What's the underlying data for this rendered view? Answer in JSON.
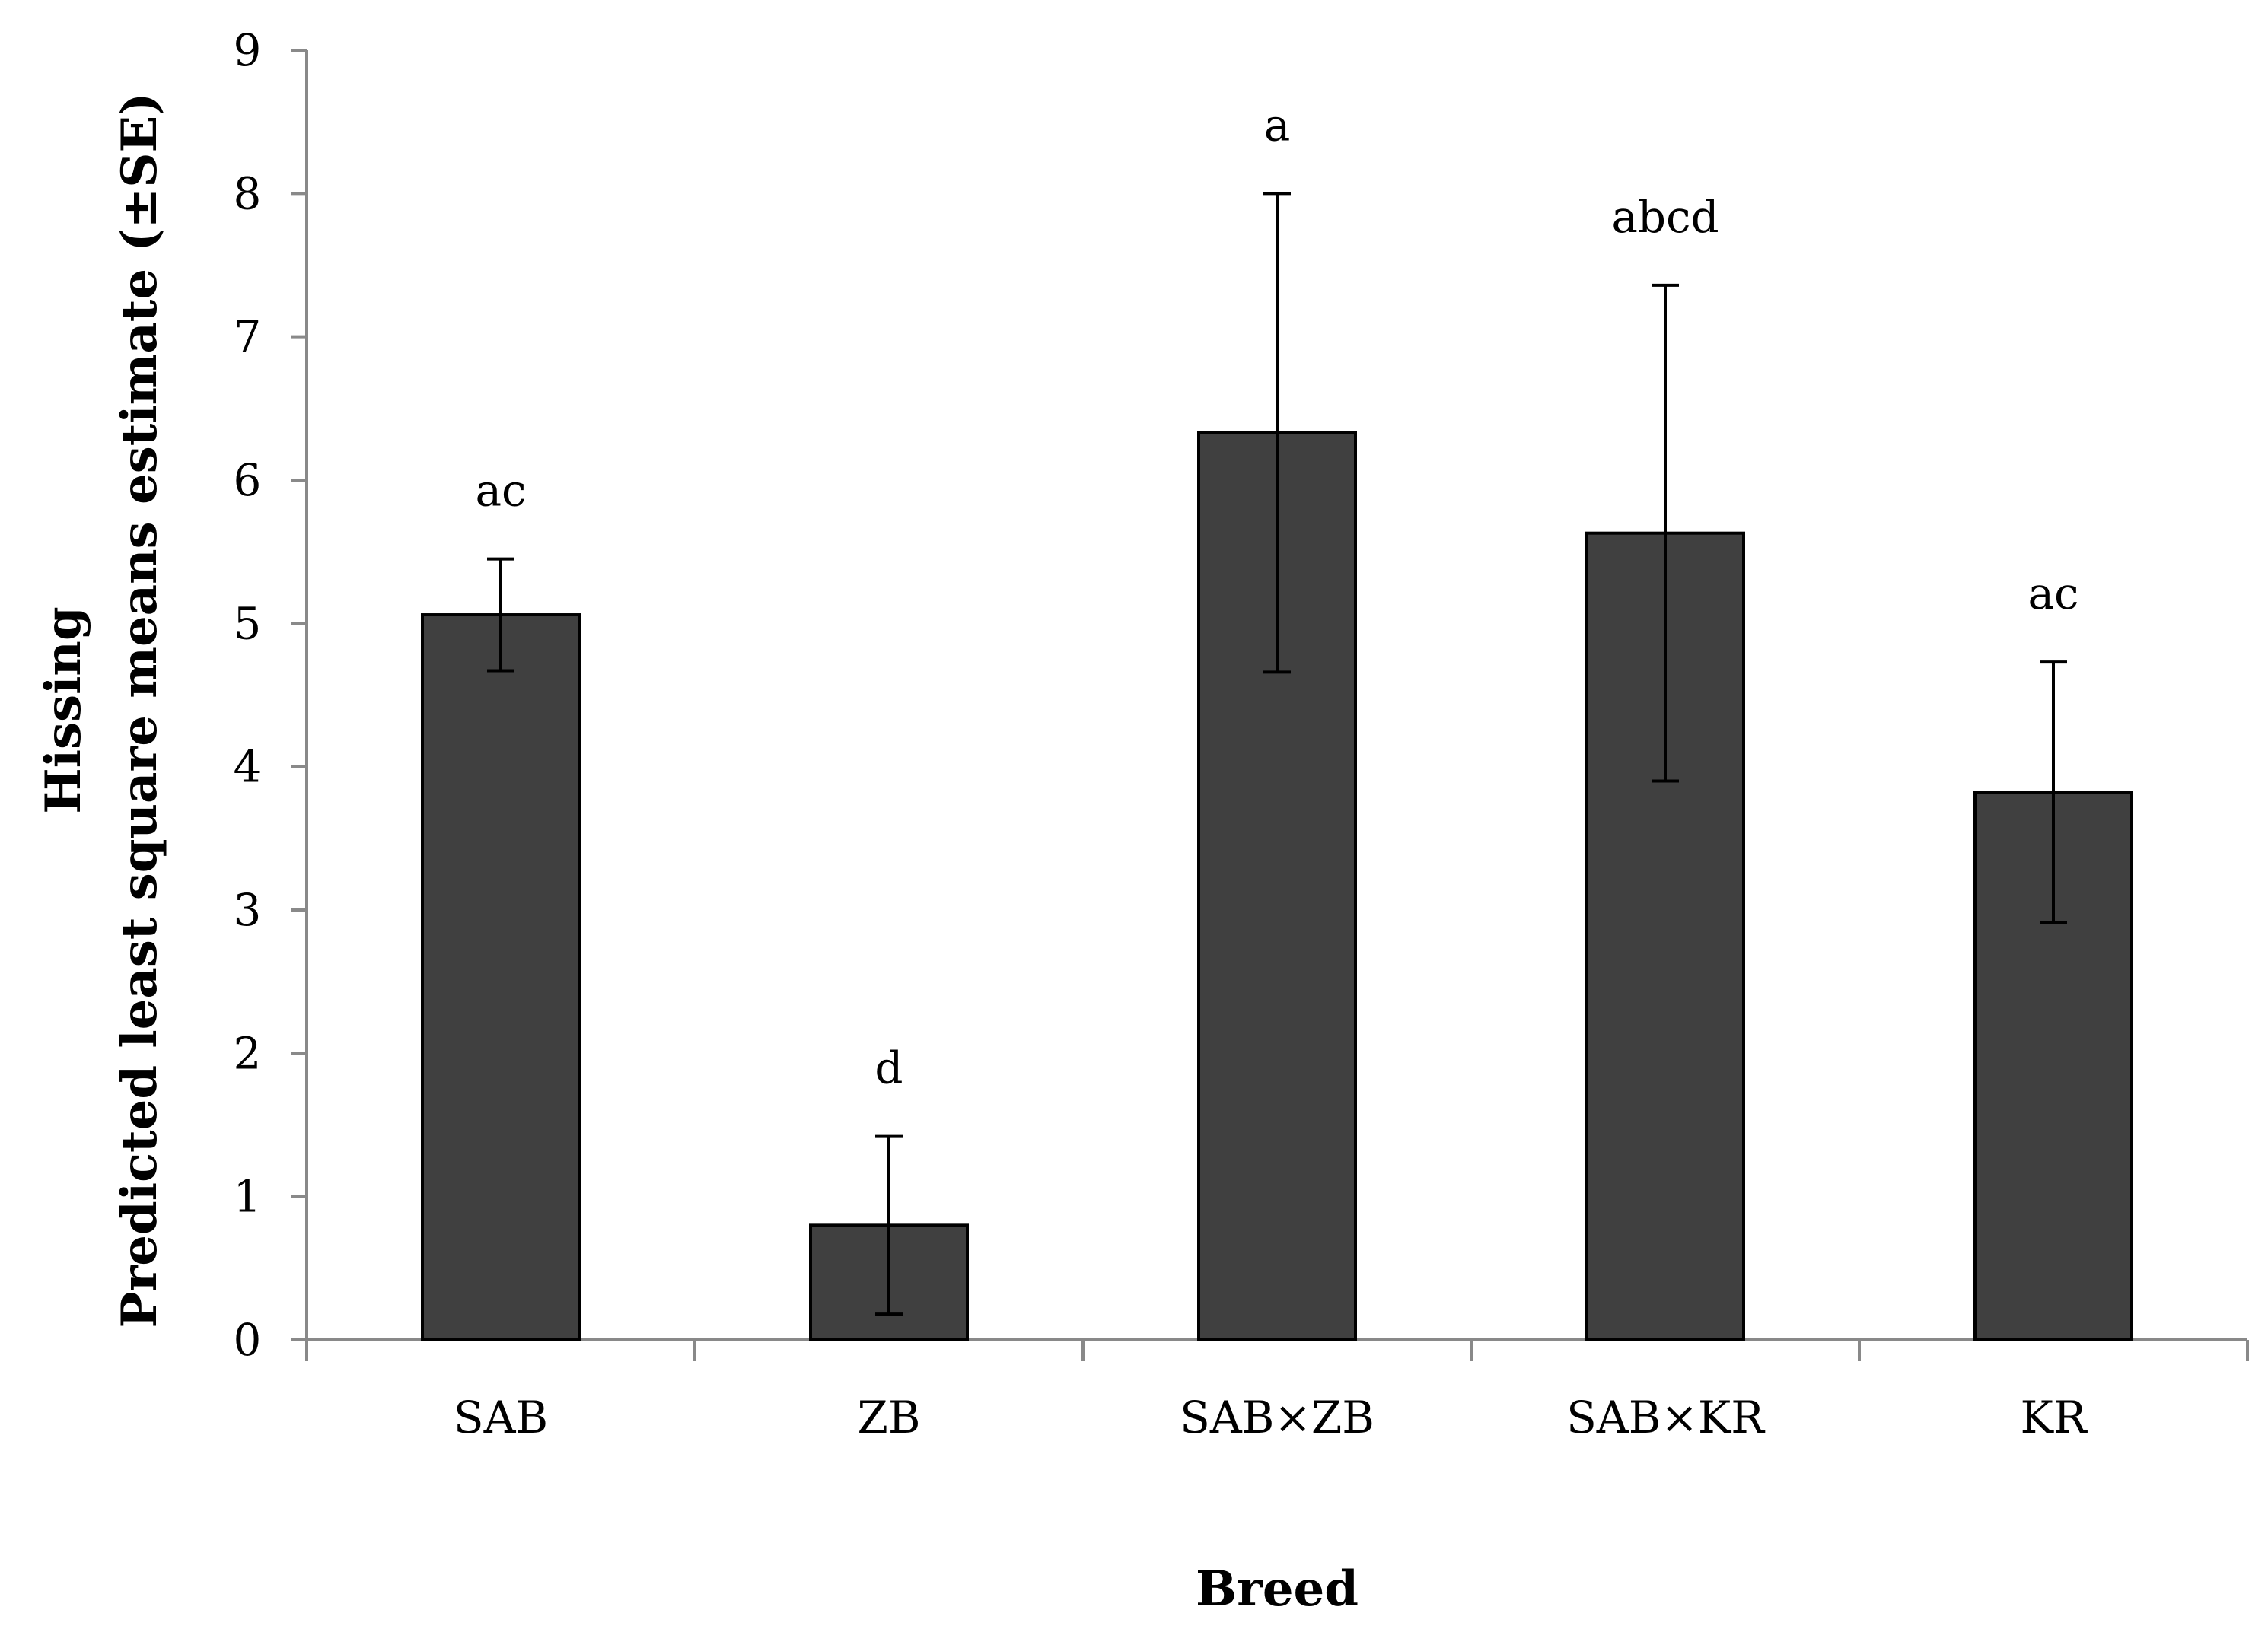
{
  "chart_data": {
    "type": "bar",
    "title": "",
    "xlabel": "Breed",
    "ylabel_lines": [
      "Hissing",
      "Predicted least square means estimate (±SE)"
    ],
    "categories": [
      "SAB",
      "ZB",
      "SAB×ZB",
      "SAB×KR",
      "KR"
    ],
    "values": [
      5.06,
      0.8,
      6.33,
      5.63,
      3.82
    ],
    "error_upper": [
      5.45,
      1.42,
      8.0,
      7.36,
      4.73
    ],
    "error_lower": [
      4.67,
      0.18,
      4.66,
      3.9,
      2.91
    ],
    "significance_labels": [
      "ac",
      "d",
      "a",
      "abcd",
      "ac"
    ],
    "ylim": [
      0,
      9
    ],
    "yticks": [
      0,
      1,
      2,
      3,
      4,
      5,
      6,
      7,
      8,
      9
    ],
    "grid": false,
    "legend": "none",
    "colors": {
      "bar_fill": "#404040",
      "bar_stroke": "#000000",
      "axis": "#898989",
      "error_bar": "#000000"
    }
  }
}
